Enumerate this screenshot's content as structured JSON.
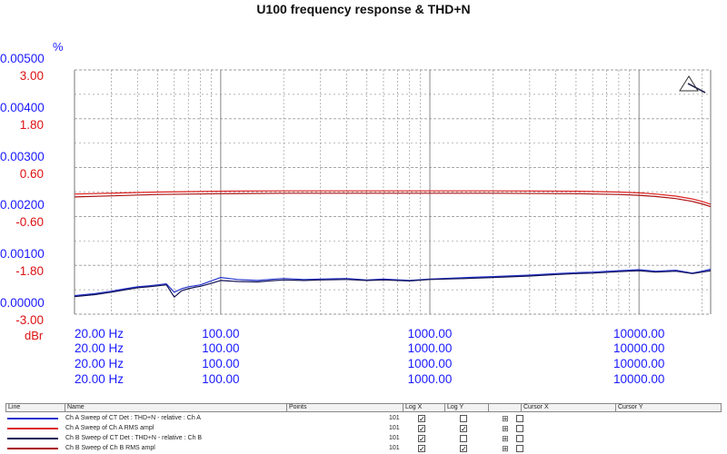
{
  "chart_data": {
    "type": "line",
    "title": "U100 frequency response & THD+N",
    "y_axis_left_unit": "%",
    "y_axis_right_unit": "dBr",
    "y_ticks_left_percent": [
      "0.00500",
      "0.00400",
      "0.00300",
      "0.00200",
      "0.00100",
      "0.00000"
    ],
    "y_ticks_left_dbr": [
      "3.00",
      "1.80",
      "0.60",
      "-0.60",
      "-1.80",
      "-3.00"
    ],
    "ylim_percent": [
      0,
      0.005
    ],
    "ylim_dbr": [
      -3,
      3
    ],
    "x_scale": "log",
    "xlim": [
      20,
      22000
    ],
    "x_tick_rows": [
      [
        "20.00 Hz",
        "100.00",
        "1000.00",
        "10000.00"
      ],
      [
        "20.00 Hz",
        "100.00",
        "1000.00",
        "10000.00"
      ],
      [
        "20.00 Hz",
        "100.00",
        "1000.00",
        "10000.00"
      ],
      [
        "20.00 Hz",
        "100.00",
        "1000.00",
        "10000.00"
      ]
    ],
    "x_tick_values": [
      20,
      100,
      1000,
      10000
    ],
    "grid": true,
    "series": [
      {
        "name": "Ch A Sweep of CT Det : THD+N - relative : Ch A",
        "color": "#2233cc",
        "axis": "percent",
        "x": [
          20,
          25,
          30,
          35,
          40,
          45,
          50,
          55,
          60,
          65,
          70,
          75,
          80,
          90,
          100,
          120,
          150,
          170,
          200,
          250,
          300,
          400,
          500,
          600,
          800,
          1000,
          1500,
          2000,
          3000,
          4000,
          5000,
          6000,
          8000,
          10000,
          12000,
          15000,
          18000,
          20000,
          22000
        ],
        "y": [
          0.00038,
          0.00042,
          0.00047,
          0.00052,
          0.00056,
          0.00058,
          0.0006,
          0.00062,
          0.00045,
          0.00052,
          0.00056,
          0.00058,
          0.0006,
          0.00068,
          0.00075,
          0.00071,
          0.00069,
          0.00071,
          0.00073,
          0.00071,
          0.00072,
          0.00073,
          0.0007,
          0.00072,
          0.00069,
          0.00072,
          0.00075,
          0.00077,
          0.0008,
          0.00083,
          0.00085,
          0.00086,
          0.00089,
          0.00091,
          0.00088,
          0.0009,
          0.00084,
          0.00088,
          0.00092
        ]
      },
      {
        "name": "Ch A Sweep of Ch A RMS ampl",
        "color": "#dd2222",
        "axis": "dbr",
        "x": [
          20,
          50,
          100,
          200,
          500,
          1000,
          2000,
          5000,
          8000,
          10000,
          12000,
          15000,
          18000,
          20000,
          22000
        ],
        "y": [
          -0.05,
          0.0,
          0.02,
          0.03,
          0.03,
          0.03,
          0.03,
          0.02,
          0.0,
          -0.02,
          -0.05,
          -0.1,
          -0.17,
          -0.23,
          -0.3
        ]
      },
      {
        "name": "Ch B Sweep of CT Det : THD+N - relative : Ch B",
        "color": "#111155",
        "axis": "percent",
        "x": [
          20,
          25,
          30,
          35,
          40,
          45,
          50,
          55,
          60,
          65,
          70,
          75,
          80,
          90,
          100,
          120,
          150,
          170,
          200,
          250,
          300,
          400,
          500,
          600,
          800,
          1000,
          1500,
          2000,
          3000,
          4000,
          5000,
          6000,
          8000,
          10000,
          12000,
          15000,
          18000,
          20000,
          22000
        ],
        "y": [
          0.00036,
          0.0004,
          0.00045,
          0.0005,
          0.00054,
          0.00056,
          0.00058,
          0.0006,
          0.00035,
          0.00048,
          0.00052,
          0.00055,
          0.00057,
          0.00063,
          0.00069,
          0.00067,
          0.00066,
          0.00068,
          0.0007,
          0.00069,
          0.0007,
          0.00071,
          0.00069,
          0.0007,
          0.00068,
          0.00071,
          0.00073,
          0.00075,
          0.00078,
          0.00081,
          0.00083,
          0.00084,
          0.00087,
          0.00089,
          0.00086,
          0.00088,
          0.00083,
          0.00086,
          0.00089
        ]
      },
      {
        "name": "Ch B Sweep of Ch B RMS ampl",
        "color": "#aa1111",
        "axis": "dbr",
        "x": [
          20,
          50,
          100,
          200,
          500,
          1000,
          2000,
          5000,
          8000,
          10000,
          12000,
          15000,
          18000,
          20000,
          22000
        ],
        "y": [
          -0.12,
          -0.06,
          -0.04,
          -0.03,
          -0.03,
          -0.03,
          -0.03,
          -0.04,
          -0.06,
          -0.08,
          -0.11,
          -0.16,
          -0.23,
          -0.29,
          -0.36
        ]
      }
    ]
  },
  "panel": {
    "headers": {
      "line": "Line",
      "name": "Name",
      "points": "Points",
      "logx": "Log X",
      "logy": "Log Y",
      "cursorx": "Cursor X",
      "cursory": "Cursor Y"
    },
    "rows": [
      {
        "color": "#2233cc",
        "name": "Ch A Sweep of CT Det : THD+N - relative : Ch A",
        "points": "101",
        "logx": "☑",
        "logy": "☐"
      },
      {
        "color": "#dd2222",
        "name": "Ch A Sweep of Ch A RMS ampl",
        "points": "101",
        "logx": "☑",
        "logy": "☑"
      },
      {
        "color": "#111155",
        "name": "Ch B Sweep of CT Det : THD+N - relative : Ch B",
        "points": "101",
        "logx": "☑",
        "logy": "☐"
      },
      {
        "color": "#aa1111",
        "name": "Ch B Sweep of Ch B RMS ampl",
        "points": "101",
        "logx": "☑",
        "logy": "☑"
      }
    ]
  },
  "colors": {
    "left_axis_percent": "#1a1aff",
    "left_axis_dbr": "#dd1111",
    "grid": "#9a9a9a"
  },
  "icons": {
    "cursor_marker": "triangle-cursor-icon",
    "expand": "plus-box-icon"
  }
}
